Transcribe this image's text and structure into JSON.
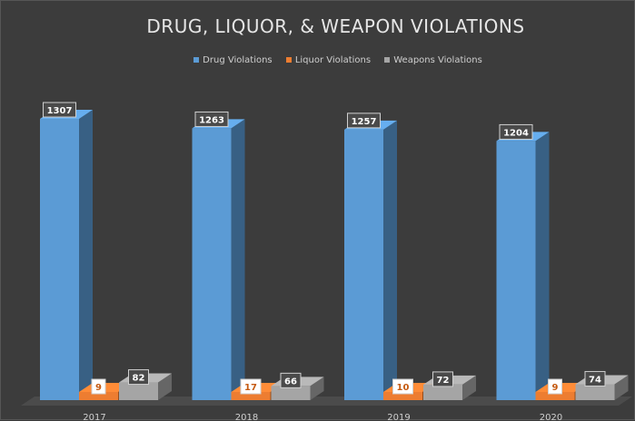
{
  "chart_data": {
    "type": "bar",
    "title": "DRUG, LIQUOR, & WEAPON VIOLATIONS",
    "categories": [
      "2017",
      "2018",
      "2019",
      "2020"
    ],
    "series": [
      {
        "name": "Drug Violations",
        "values": [
          1307,
          1263,
          1257,
          1204
        ],
        "color": "#5b9bd5"
      },
      {
        "name": "Liquor Violations",
        "values": [
          9,
          17,
          10,
          9
        ],
        "color": "#ed7d31"
      },
      {
        "name": "Weapons Violations",
        "values": [
          82,
          66,
          72,
          74
        ],
        "color": "#a5a5a5"
      }
    ],
    "ylim": [
      0,
      1400
    ],
    "style": "3d-clustered-column",
    "data_labels": true,
    "grid": false,
    "legend_position": "top"
  }
}
